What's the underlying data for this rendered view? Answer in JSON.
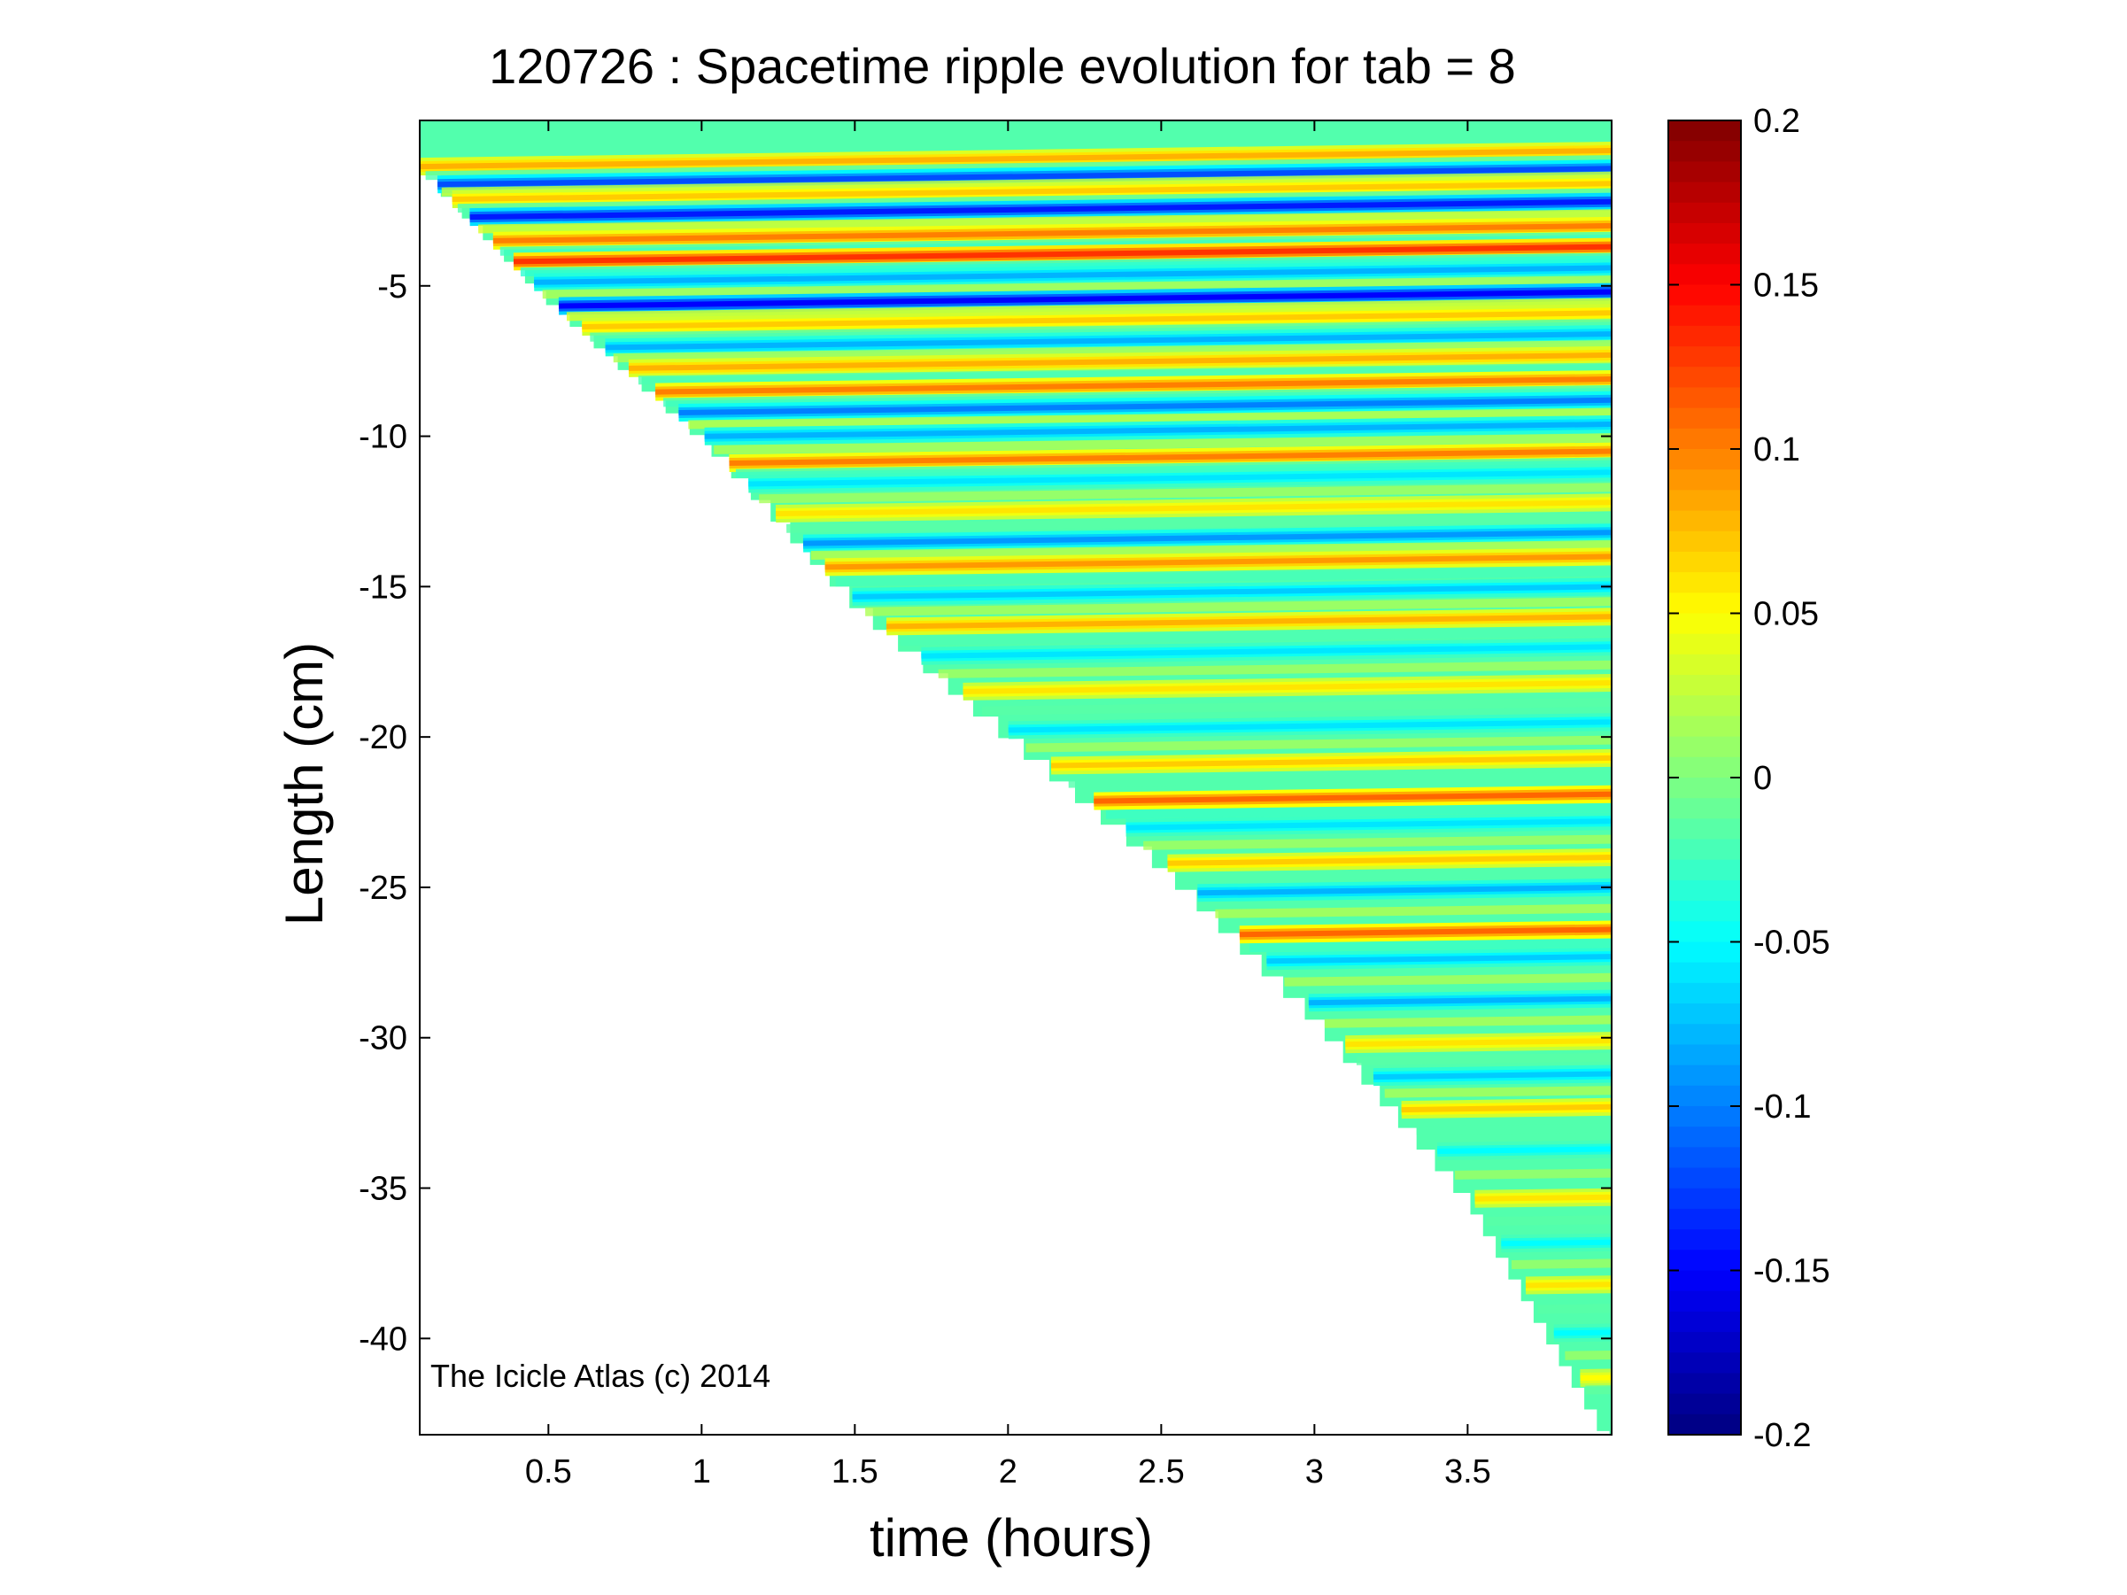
{
  "figure": {
    "title": "120726 : Spacetime ripple evolution for tab = 8",
    "watermark": "The Icicle Atlas (c) 2014"
  },
  "chart_data": {
    "type": "heatmap",
    "title": "120726 : Spacetime ripple evolution for tab = 8",
    "xlabel": "time (hours)",
    "ylabel": "Length (cm)",
    "xlim": [
      0.08,
      3.97
    ],
    "ylim": [
      -43.2,
      0.5
    ],
    "x_ticks": [
      0.5,
      1,
      1.5,
      2,
      2.5,
      3,
      3.5
    ],
    "x_tick_labels": [
      "0.5",
      "1",
      "1.5",
      "2",
      "2.5",
      "3",
      "3.5"
    ],
    "y_ticks": [
      -5,
      -10,
      -15,
      -20,
      -25,
      -30,
      -35,
      -40
    ],
    "y_tick_labels": [
      "-5",
      "-10",
      "-15",
      "-20",
      "-25",
      "-30",
      "-35",
      "-40"
    ],
    "colorbar": {
      "colormap": "jet",
      "clim": [
        -0.2,
        0.2
      ],
      "ticks": [
        0.2,
        0.15,
        0.1,
        0.05,
        0,
        -0.05,
        -0.1,
        -0.15,
        -0.2
      ],
      "tick_labels": [
        "0.2",
        "0.15",
        "0.1",
        "0.05",
        "0",
        "-0.05",
        "-0.1",
        "-0.15",
        "-0.2"
      ]
    },
    "grid": false,
    "data_region": {
      "description": "lower-right triangle; left boundary runs from (0.08 h, -0.6 cm) to (3.97 h, -43.2 cm)",
      "boundary_points": [
        [
          0.08,
          -0.6
        ],
        [
          0.5,
          -5
        ],
        [
          1.0,
          -9.6
        ],
        [
          1.5,
          -15.2
        ],
        [
          2.0,
          -19.6
        ],
        [
          2.5,
          -23.9
        ],
        [
          3.0,
          -29.0
        ],
        [
          3.5,
          -35.0
        ],
        [
          3.97,
          -43.2
        ]
      ]
    },
    "ridges": [
      {
        "y": -0.5,
        "amplitude": 0.08
      },
      {
        "y": -1.1,
        "amplitude": -0.12
      },
      {
        "y": -1.6,
        "amplitude": 0.07
      },
      {
        "y": -2.2,
        "amplitude": -0.14
      },
      {
        "y": -3.0,
        "amplitude": 0.1
      },
      {
        "y": -3.7,
        "amplitude": 0.13
      },
      {
        "y": -4.4,
        "amplitude": -0.08
      },
      {
        "y": -5.2,
        "amplitude": -0.15
      },
      {
        "y": -5.9,
        "amplitude": 0.07
      },
      {
        "y": -6.6,
        "amplitude": -0.08
      },
      {
        "y": -7.3,
        "amplitude": 0.08
      },
      {
        "y": -8.1,
        "amplitude": 0.1
      },
      {
        "y": -8.8,
        "amplitude": -0.1
      },
      {
        "y": -9.6,
        "amplitude": -0.08
      },
      {
        "y": -10.5,
        "amplitude": 0.1
      },
      {
        "y": -11.2,
        "amplitude": -0.06
      },
      {
        "y": -12.2,
        "amplitude": 0.06
      },
      {
        "y": -13.2,
        "amplitude": -0.09
      },
      {
        "y": -14.0,
        "amplitude": 0.09
      },
      {
        "y": -15.0,
        "amplitude": -0.07
      },
      {
        "y": -16.0,
        "amplitude": 0.08
      },
      {
        "y": -17.0,
        "amplitude": -0.06
      },
      {
        "y": -18.2,
        "amplitude": 0.06
      },
      {
        "y": -19.5,
        "amplitude": -0.06
      },
      {
        "y": -20.7,
        "amplitude": 0.07
      },
      {
        "y": -21.9,
        "amplitude": 0.11
      },
      {
        "y": -22.8,
        "amplitude": -0.06
      },
      {
        "y": -24.0,
        "amplitude": 0.07
      },
      {
        "y": -25.0,
        "amplitude": -0.08
      },
      {
        "y": -26.4,
        "amplitude": 0.11
      },
      {
        "y": -27.3,
        "amplitude": -0.07
      },
      {
        "y": -28.7,
        "amplitude": -0.08
      },
      {
        "y": -30.1,
        "amplitude": 0.06
      },
      {
        "y": -31.2,
        "amplitude": -0.07
      },
      {
        "y": -32.3,
        "amplitude": 0.07
      },
      {
        "y": -33.7,
        "amplitude": -0.05
      },
      {
        "y": -35.3,
        "amplitude": 0.06
      },
      {
        "y": -36.8,
        "amplitude": -0.05
      },
      {
        "y": -38.2,
        "amplitude": 0.06
      },
      {
        "y": -39.8,
        "amplitude": -0.05
      },
      {
        "y": -41.3,
        "amplitude": 0.05
      }
    ]
  }
}
